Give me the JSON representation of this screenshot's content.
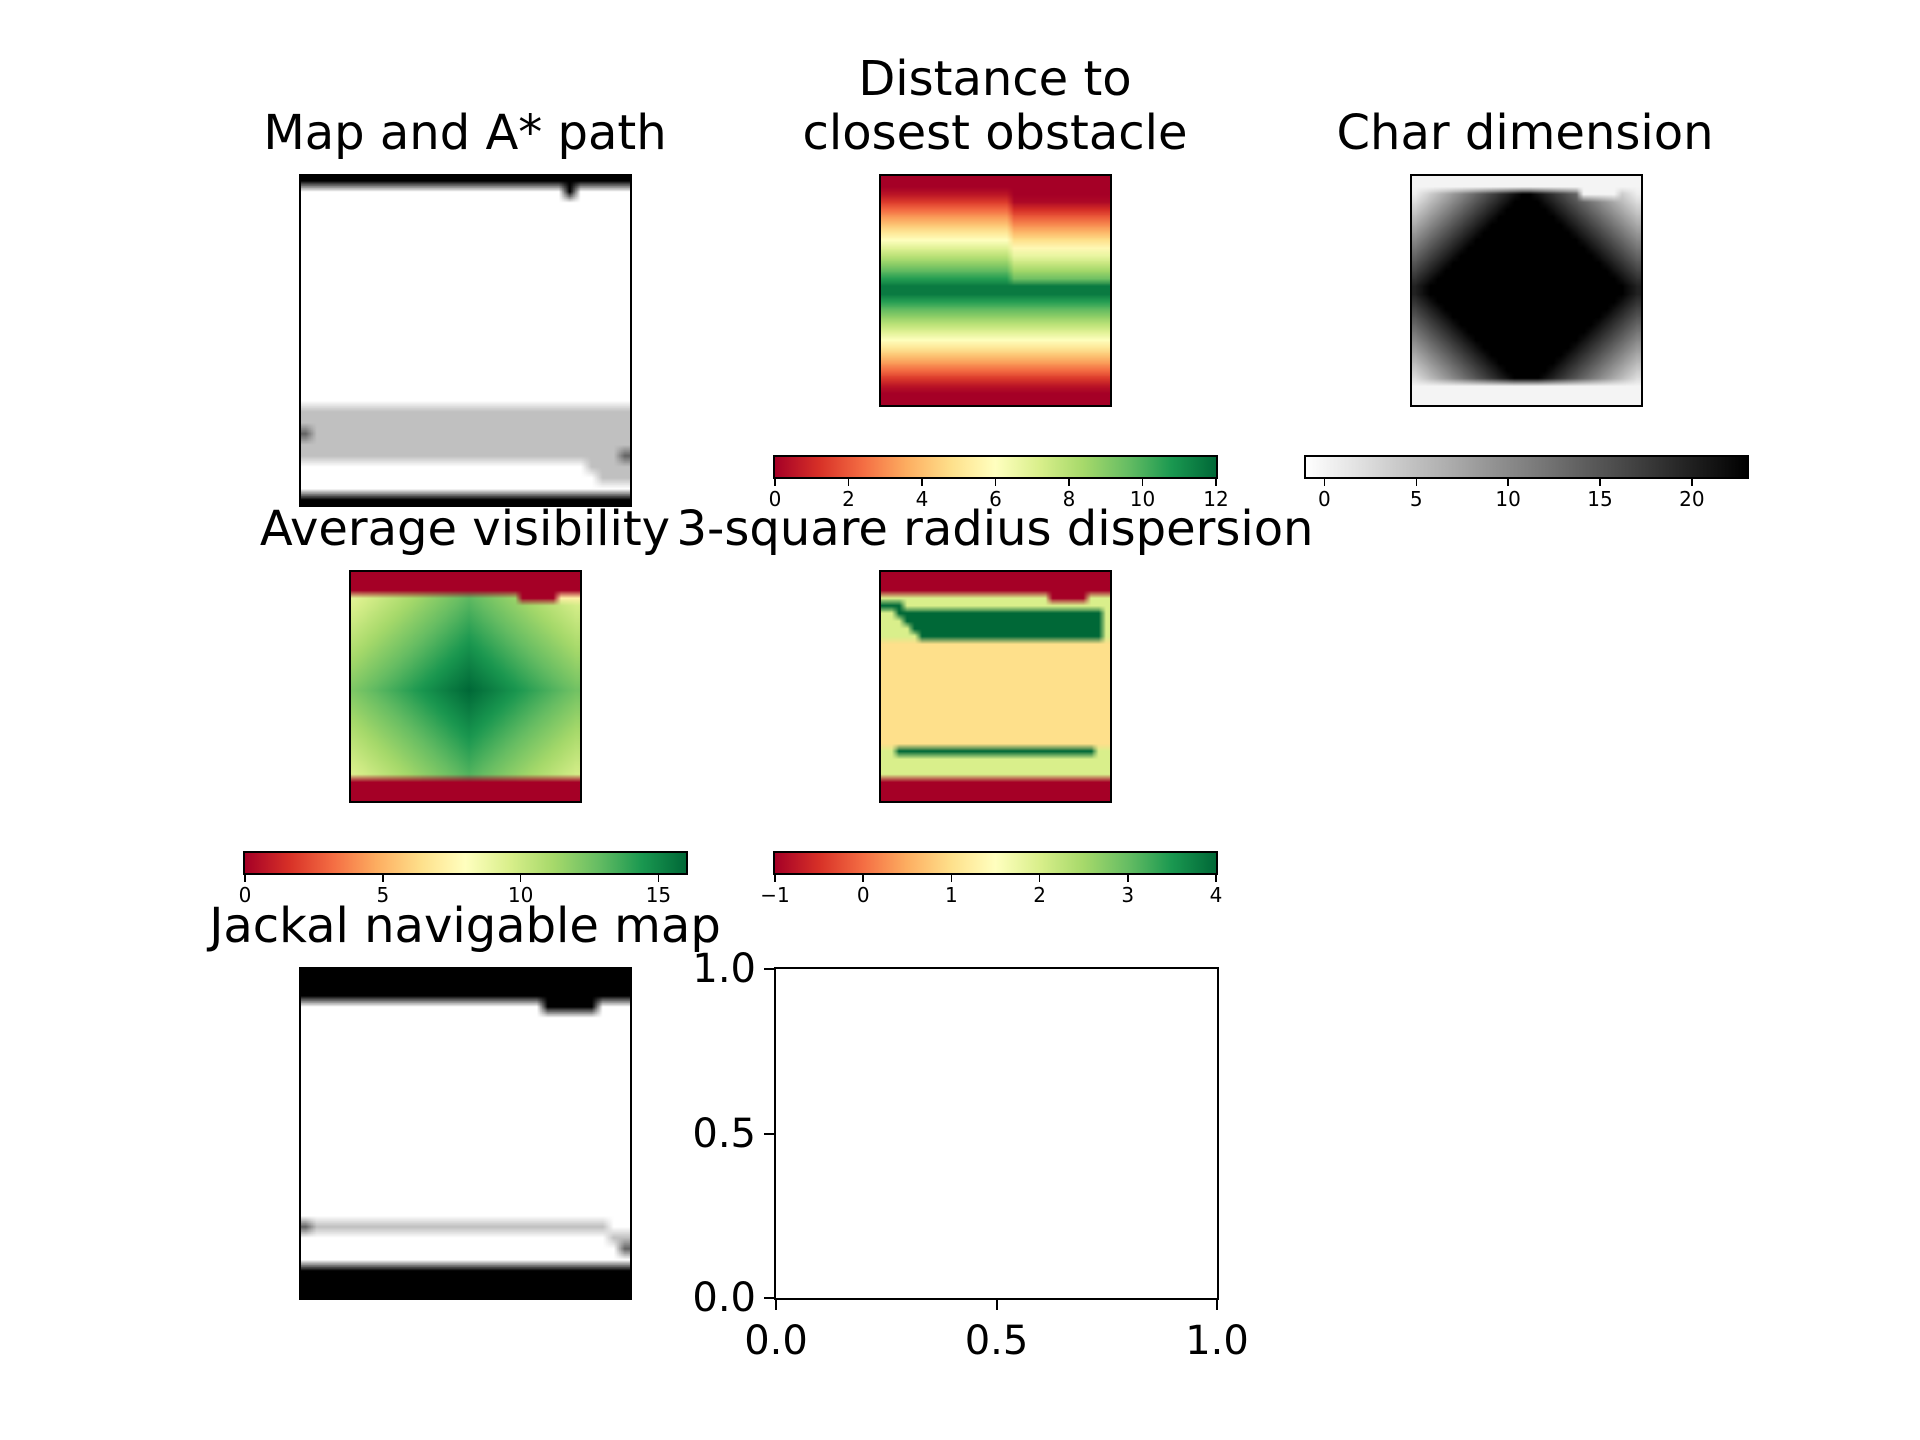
{
  "figure": {
    "panels": [
      {
        "title": "Map and A* path"
      },
      {
        "title": "Distance to\nclosest obstacle"
      },
      {
        "title": "Char dimension"
      },
      {
        "title": "Average visibility"
      },
      {
        "title": "3-square radius dispersion"
      },
      {
        "title": "Jackal navigable map"
      },
      {
        "title": ""
      }
    ]
  },
  "chart_data": [
    {
      "type": "heatmap",
      "title": "Map and A* path",
      "colormap": "gray_r",
      "colorbar": false,
      "grid_size": [
        30,
        30
      ],
      "content": "occupancy map: obstacle rows at top and bottom, small obstacle near top-right; light gray A* path band across lower part with dark start and goal cells"
    },
    {
      "type": "heatmap",
      "title": "Distance to\nclosest obstacle",
      "colormap": "RdYlGn",
      "colorbar": true,
      "clim": [
        0,
        12
      ],
      "colorbar_ticks": [
        "0",
        "2",
        "4",
        "6",
        "8",
        "10",
        "12"
      ],
      "grid_size": [
        30,
        30
      ]
    },
    {
      "type": "heatmap",
      "title": "Char dimension",
      "colormap": "gray_r",
      "colorbar": true,
      "clim": [
        -1,
        23
      ],
      "colorbar_ticks": [
        "0",
        "5",
        "10",
        "15",
        "20"
      ],
      "grid_size": [
        30,
        30
      ]
    },
    {
      "type": "heatmap",
      "title": "Average visibility",
      "colormap": "RdYlGn",
      "colorbar": true,
      "clim": [
        0,
        16
      ],
      "colorbar_ticks": [
        "0",
        "5",
        "10",
        "15"
      ],
      "grid_size": [
        30,
        30
      ]
    },
    {
      "type": "heatmap",
      "title": "3-square radius dispersion",
      "colormap": "RdYlGn",
      "colorbar": true,
      "clim": [
        -1,
        4
      ],
      "colorbar_ticks": [
        "−1",
        "0",
        "1",
        "2",
        "3",
        "4"
      ],
      "grid_size": [
        30,
        30
      ]
    },
    {
      "type": "heatmap",
      "title": "Jackal navigable map",
      "colormap": "gray_r",
      "colorbar": false,
      "grid_size": [
        30,
        30
      ]
    },
    {
      "type": "line",
      "title": "",
      "series": [],
      "xlim": [
        0,
        1
      ],
      "ylim": [
        0,
        1
      ],
      "xticks": [
        "0.0",
        "0.5",
        "1.0"
      ],
      "yticks": [
        "0.0",
        "0.5",
        "1.0"
      ]
    }
  ]
}
